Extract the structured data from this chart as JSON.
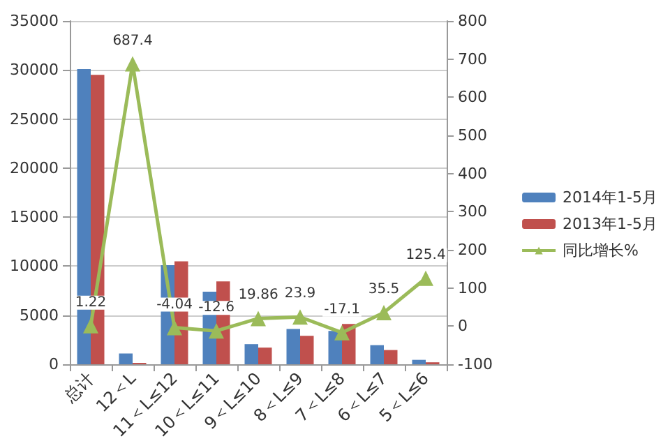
{
  "chart_data": {
    "type": "bar",
    "categories": [
      "总计",
      "12＜L",
      "11＜L≤12",
      "10＜L≤11",
      "9＜L≤10",
      "8＜L≤9",
      "7＜L≤8",
      "6＜L≤7",
      "5＜L≤6"
    ],
    "series": [
      {
        "name": "2014年1-5月",
        "color": "#4f81bd",
        "values": [
          30100,
          1100,
          10100,
          7400,
          2050,
          3600,
          3400,
          1950,
          450
        ]
      },
      {
        "name": "2013年1-5月",
        "color": "#c0504d",
        "values": [
          29500,
          140,
          10500,
          8450,
          1700,
          2900,
          4100,
          1450,
          200
        ]
      },
      {
        "name": "同比增长%",
        "type": "line",
        "axis": "y2",
        "color": "#9bbb59",
        "marker": "triangle",
        "data_labels": true,
        "values": [
          1.22,
          687.4,
          -4.04,
          -12.6,
          19.86,
          23.9,
          -17.1,
          35.5,
          125.4
        ]
      }
    ],
    "ylim": [
      0,
      35000
    ],
    "yticks": [
      0,
      5000,
      10000,
      15000,
      20000,
      25000,
      30000,
      35000
    ],
    "y2lim": [
      -100,
      800
    ],
    "y2ticks": [
      -100,
      0,
      100,
      200,
      300,
      400,
      500,
      600,
      700,
      800
    ],
    "grid": "y",
    "legend": "right"
  }
}
